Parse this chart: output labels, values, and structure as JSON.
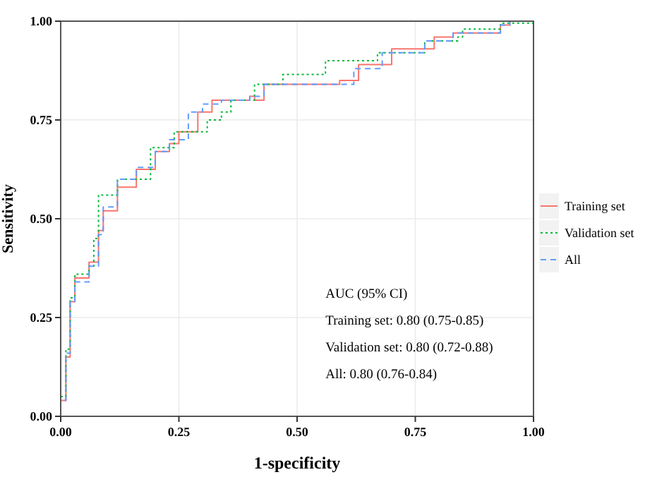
{
  "chart_data": {
    "type": "step",
    "xlabel": "1-specificity",
    "ylabel": "Sensitivity",
    "xlim": [
      0,
      1
    ],
    "ylim": [
      0,
      1
    ],
    "xticks": [
      {
        "value": 0,
        "label": "0.00"
      },
      {
        "value": 0.25,
        "label": "0.25"
      },
      {
        "value": 0.5,
        "label": "0.50"
      },
      {
        "value": 0.75,
        "label": "0.75"
      },
      {
        "value": 1,
        "label": "1.00"
      }
    ],
    "yticks": [
      {
        "value": 0,
        "label": "0.00"
      },
      {
        "value": 0.25,
        "label": "0.25"
      },
      {
        "value": 0.5,
        "label": "0.50"
      },
      {
        "value": 0.75,
        "label": "0.75"
      },
      {
        "value": 1,
        "label": "1.00"
      }
    ],
    "grid": true,
    "legend": "right",
    "series": [
      {
        "name": "Training set",
        "color": "#f8766d",
        "line_style": "solid",
        "x": [
          0,
          0,
          0.011,
          0.02,
          0.03,
          0.06,
          0.08,
          0.09,
          0.12,
          0.16,
          0.2,
          0.23,
          0.25,
          0.29,
          0.32,
          0.37,
          0.4,
          0.41,
          0.43,
          0.59,
          0.63,
          0.7,
          0.79,
          0.83,
          0.93,
          0.95
        ],
        "values": [
          0,
          0.04,
          0.15,
          0.29,
          0.35,
          0.39,
          0.47,
          0.52,
          0.58,
          0.625,
          0.67,
          0.69,
          0.72,
          0.77,
          0.8,
          0.8,
          0.81,
          0.8,
          0.84,
          0.85,
          0.89,
          0.93,
          0.96,
          0.97,
          0.99,
          1
        ]
      },
      {
        "name": "Validation set",
        "color": "#00ba38",
        "line_style": "dotted",
        "x": [
          0,
          0,
          0.011,
          0.02,
          0.03,
          0.06,
          0.07,
          0.08,
          0.12,
          0.19,
          0.24,
          0.27,
          0.31,
          0.34,
          0.36,
          0.4,
          0.41,
          0.45,
          0.47,
          0.53,
          0.56,
          0.66,
          0.67,
          0.74,
          0.77,
          0.84,
          0.85,
          0.93,
          1
        ],
        "values": [
          0,
          0.05,
          0.17,
          0.3,
          0.36,
          0.38,
          0.45,
          0.56,
          0.6,
          0.68,
          0.72,
          0.72,
          0.75,
          0.77,
          0.8,
          0.8,
          0.84,
          0.84,
          0.865,
          0.865,
          0.9,
          0.9,
          0.92,
          0.92,
          0.95,
          0.96,
          0.98,
          0.995,
          1
        ]
      },
      {
        "name": "All",
        "color": "#619cff",
        "line_style": "dashed",
        "x": [
          0,
          0,
          0.011,
          0.02,
          0.03,
          0.06,
          0.08,
          0.09,
          0.12,
          0.16,
          0.2,
          0.23,
          0.27,
          0.3,
          0.34,
          0.4,
          0.43,
          0.59,
          0.62,
          0.68,
          0.77,
          0.83,
          0.93,
          0.95
        ],
        "values": [
          0,
          0.04,
          0.16,
          0.29,
          0.34,
          0.38,
          0.46,
          0.53,
          0.6,
          0.63,
          0.67,
          0.7,
          0.77,
          0.79,
          0.8,
          0.81,
          0.84,
          0.84,
          0.88,
          0.92,
          0.95,
          0.97,
          0.99,
          1
        ]
      }
    ],
    "annotations": [
      "AUC (95% CI)",
      "Training set: 0.80 (0.75-0.85)",
      "Validation set: 0.80 (0.72-0.88)",
      "All: 0.80 (0.76-0.84)"
    ]
  }
}
